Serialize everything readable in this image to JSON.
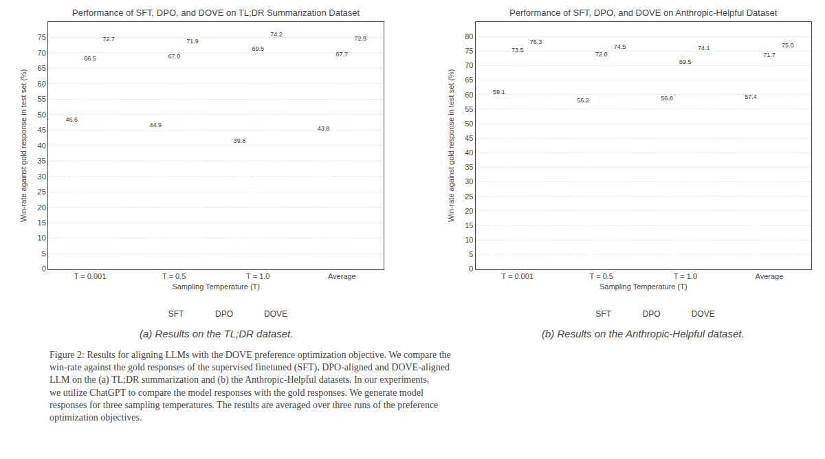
{
  "chart_data": [
    {
      "type": "bar",
      "title": "Performance of SFT, DPO, and DOVE on TL;DR Summarization Dataset",
      "x_label": "Sampling Temperature (T)",
      "y_label": "Win-rate against gold response in test set (%)",
      "caption": "(a) Results on the TL;DR dataset.",
      "categories": [
        "T = 0.001",
        "T = 0.5",
        "T = 1.0",
        "Average"
      ],
      "series": [
        {
          "name": "SFT",
          "color": "#5b8dd9",
          "values": [
            46.6,
            44.9,
            39.8,
            43.8
          ]
        },
        {
          "name": "DPO",
          "color": "#3a7a3a",
          "values": [
            66.5,
            67.0,
            69.5,
            67.7
          ]
        },
        {
          "name": "DOVE",
          "color": "#e8704a",
          "values": [
            72.7,
            71.9,
            74.2,
            72.9
          ]
        }
      ],
      "value_labels": [
        [
          "46.6",
          "44.9",
          "39.8",
          "43.8"
        ],
        [
          "66.5",
          "67.0",
          "69.5",
          "67.7"
        ],
        [
          "72.7",
          "71.9",
          "74.2",
          "72.9"
        ]
      ],
      "ylim": [
        0,
        80
      ],
      "yticks": [
        0,
        5,
        10,
        15,
        20,
        25,
        30,
        35,
        40,
        45,
        50,
        55,
        60,
        65,
        70,
        75
      ],
      "grid": true,
      "data_labels": true,
      "legend": "bottom"
    },
    {
      "type": "bar",
      "title": "Performance of SFT, DPO, and DOVE on Anthropic-Helpful Dataset",
      "x_label": "Sampling Temperature (T)",
      "y_label": "Win-rate against gold response in test set (%)",
      "caption": "(b) Results on the Anthropic-Helpful dataset.",
      "categories": [
        "T = 0.001",
        "T = 0.5",
        "T = 1.0",
        "Average"
      ],
      "series": [
        {
          "name": "SFT",
          "color": "#5b8dd9",
          "values": [
            59.1,
            56.2,
            56.8,
            57.4
          ]
        },
        {
          "name": "DPO",
          "color": "#3a7a3a",
          "values": [
            73.5,
            72.0,
            69.5,
            71.7
          ]
        },
        {
          "name": "DOVE",
          "color": "#e8704a",
          "values": [
            76.3,
            74.5,
            74.1,
            75.0
          ]
        }
      ],
      "value_labels": [
        [
          "59.1",
          "56.2",
          "56.8",
          "57.4"
        ],
        [
          "73.5",
          "72.0",
          "69.5",
          "71.7"
        ],
        [
          "76.3",
          "74.5",
          "74.1",
          "75.0"
        ]
      ],
      "ylim": [
        0,
        85
      ],
      "yticks": [
        0,
        5,
        10,
        15,
        20,
        25,
        30,
        35,
        40,
        45,
        50,
        55,
        60,
        65,
        70,
        75,
        80
      ],
      "grid": true,
      "data_labels": true,
      "legend": "bottom"
    }
  ],
  "figure_text": [
    "Figure 2: Results for aligning LLMs with the DOVE preference optimization objective. We compare the",
    "win-rate against the gold responses of the supervised finetuned (SFT), DPO-aligned and DOVE-aligned",
    "LLM on the (a) TL;DR summarization and (b) the Anthropic-Helpful datasets. In our experiments,",
    "we utilize ChatGPT to compare the model responses with the gold responses. We generate model",
    "responses for three sampling temperatures. The results are averaged over three runs of the preference",
    "optimization objectives."
  ]
}
